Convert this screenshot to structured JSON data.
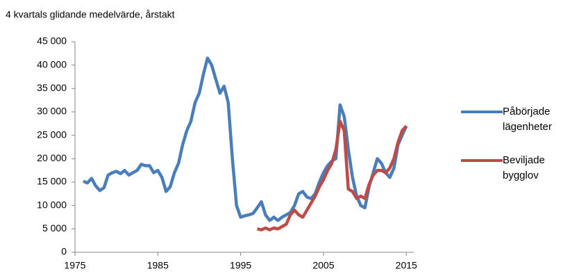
{
  "chart_data": {
    "type": "line",
    "title": "4 kvartals glidande medelvärde, årstakt",
    "xlim": [
      1975,
      2015.9
    ],
    "xticks": [
      1975,
      1985,
      1995,
      2005,
      2015
    ],
    "ylim": [
      0,
      45000
    ],
    "yticks": [
      0,
      {
        "value": 5000,
        "label": "5 000"
      },
      {
        "value": 10000,
        "label": "10 000"
      },
      {
        "value": 15000,
        "label": "15 000"
      },
      {
        "value": 20000,
        "label": "20 000"
      },
      {
        "value": 25000,
        "label": "25 000"
      },
      {
        "value": 30000,
        "label": "30 000"
      },
      {
        "value": 35000,
        "label": "35 000"
      },
      {
        "value": 40000,
        "label": "40 000"
      },
      {
        "value": 45000,
        "label": "45 000"
      }
    ],
    "grid": false,
    "series": [
      {
        "name": "Påbörjade lägenheter",
        "color": "#4a7ebb",
        "x": [
          1976,
          1976.5,
          1977,
          1977.5,
          1978,
          1978.5,
          1979,
          1979.5,
          1980,
          1980.5,
          1981,
          1981.5,
          1982,
          1982.5,
          1983,
          1983.5,
          1984,
          1984.5,
          1985,
          1985.5,
          1986,
          1986.5,
          1987,
          1987.5,
          1988,
          1988.5,
          1989,
          1989.5,
          1990,
          1990.5,
          1991,
          1991.5,
          1992,
          1992.5,
          1993,
          1993.5,
          1994,
          1994.5,
          1995,
          1995.5,
          1996,
          1996.5,
          1997,
          1997.5,
          1998,
          1998.5,
          1999,
          1999.5,
          2000,
          2000.5,
          2001,
          2001.5,
          2002,
          2002.5,
          2003,
          2003.5,
          2004,
          2004.5,
          2005,
          2005.5,
          2006,
          2006.5,
          2007,
          2007.5,
          2008,
          2008.5,
          2009,
          2009.5,
          2010,
          2010.5,
          2011,
          2011.5,
          2012,
          2012.5,
          2013,
          2013.5,
          2014,
          2014.5,
          2015
        ],
        "values": [
          15200,
          14800,
          15800,
          14200,
          13200,
          13800,
          16500,
          17000,
          17300,
          16800,
          17500,
          16500,
          17000,
          17500,
          18800,
          18500,
          18500,
          17000,
          17500,
          16000,
          13000,
          14000,
          17000,
          19000,
          23000,
          26000,
          28000,
          32000,
          34000,
          38000,
          41500,
          40000,
          37000,
          34000,
          35500,
          32000,
          20000,
          10000,
          7500,
          7800,
          8000,
          8300,
          9500,
          10800,
          8000,
          6800,
          7500,
          6800,
          7500,
          8000,
          8500,
          10000,
          12500,
          13000,
          11800,
          11500,
          12500,
          15000,
          17000,
          18500,
          19500,
          20000,
          31500,
          29000,
          22000,
          16000,
          12000,
          10000,
          9500,
          14000,
          17000,
          20000,
          19000,
          17000,
          16000,
          18000,
          23000,
          25000,
          27000
        ]
      },
      {
        "name": "Beviljade bygglov",
        "color": "#be4b48",
        "x": [
          1997,
          1997.5,
          1998,
          1998.5,
          1999,
          1999.5,
          2000,
          2000.5,
          2001,
          2001.5,
          2002,
          2002.5,
          2003,
          2003.5,
          2004,
          2004.5,
          2005,
          2005.5,
          2006,
          2006.5,
          2007,
          2007.5,
          2008,
          2008.5,
          2009,
          2009.5,
          2010,
          2010.5,
          2011,
          2011.5,
          2012,
          2012.5,
          2013,
          2013.5,
          2014,
          2014.5,
          2015
        ],
        "values": [
          5000,
          4800,
          5200,
          4800,
          5200,
          5000,
          5500,
          6000,
          8000,
          9000,
          8000,
          7500,
          9000,
          10500,
          12000,
          14000,
          15500,
          17500,
          19000,
          22000,
          28000,
          26000,
          13500,
          13000,
          11500,
          12000,
          11500,
          14500,
          16500,
          17500,
          17500,
          17000,
          18000,
          20000,
          23500,
          26000,
          27000
        ]
      }
    ]
  }
}
